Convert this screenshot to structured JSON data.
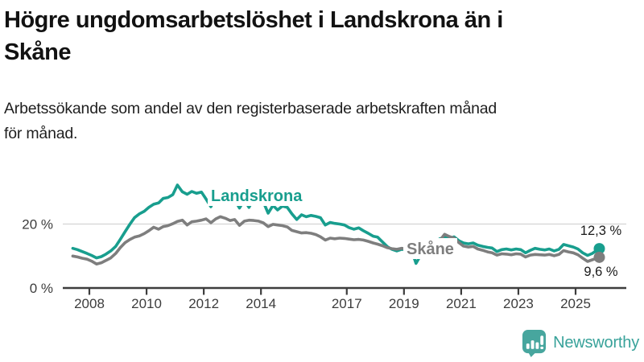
{
  "title_lines": [
    "Högre ungdomsarbetslöshet i Landskrona än i",
    "Skåne"
  ],
  "subtitle_lines": [
    "Arbetssökande som andel av den registerbaserade arbetskraften månad",
    "för månad."
  ],
  "footer": {
    "brand": "Newsworthy",
    "logo_icon": "bar-chart-speech-bubble",
    "logo_color": "#47a69e"
  },
  "colors": {
    "landskrona": "#189e8e",
    "skane": "#7e7e7e",
    "axis": "#3d3d3d",
    "grid": "#d9d9d9",
    "value_label": "#1a1a1a"
  },
  "chart_data": {
    "type": "line",
    "title": "Högre ungdomsarbetslöshet i Landskrona än i Skåne",
    "subtitle": "Arbetssökande som andel av den registerbaserade arbetskraften månad för månad.",
    "xlabel": "",
    "ylabel": "%",
    "ylim": [
      0,
      34
    ],
    "grid": "single-line-at-20",
    "legend_position": "inline-labels",
    "y_axis": {
      "ticks": [
        {
          "value": 20,
          "label": "20 %"
        },
        {
          "value": 0,
          "label": "0 %"
        }
      ]
    },
    "x_axis": {
      "ticks": [
        {
          "label": "2008",
          "year": 2008
        },
        {
          "label": "2010",
          "year": 2010
        },
        {
          "label": "2012",
          "year": 2012
        },
        {
          "label": "2014",
          "year": 2014
        },
        {
          "label": "2017",
          "year": 2017
        },
        {
          "label": "2019",
          "year": 2019
        },
        {
          "label": "2021",
          "year": 2021
        },
        {
          "label": "2023",
          "year": 2023
        },
        {
          "label": "2025",
          "year": 2025
        }
      ]
    },
    "series": [
      {
        "name": "Landskrona",
        "color": "#189e8e",
        "end_label": "12,3 %",
        "end_value": 12.3,
        "points": [
          [
            2007.42,
            12.4
          ],
          [
            2007.58,
            12.0
          ],
          [
            2007.75,
            11.4
          ],
          [
            2007.92,
            10.8
          ],
          [
            2008.08,
            10.2
          ],
          [
            2008.25,
            9.4
          ],
          [
            2008.42,
            9.8
          ],
          [
            2008.58,
            10.6
          ],
          [
            2008.75,
            11.6
          ],
          [
            2008.92,
            13.0
          ],
          [
            2009.08,
            15.2
          ],
          [
            2009.25,
            17.6
          ],
          [
            2009.42,
            20.0
          ],
          [
            2009.58,
            22.0
          ],
          [
            2009.75,
            23.2
          ],
          [
            2009.92,
            24.0
          ],
          [
            2010.08,
            25.2
          ],
          [
            2010.25,
            26.2
          ],
          [
            2010.42,
            26.6
          ],
          [
            2010.58,
            28.0
          ],
          [
            2010.75,
            28.3
          ],
          [
            2010.92,
            29.2
          ],
          [
            2011.08,
            32.2
          ],
          [
            2011.25,
            30.1
          ],
          [
            2011.42,
            29.3
          ],
          [
            2011.58,
            30.2
          ],
          [
            2011.75,
            29.6
          ],
          [
            2011.92,
            30.0
          ],
          [
            2012.08,
            27.8
          ],
          [
            2012.25,
            25.4
          ],
          [
            2012.42,
            28.6
          ],
          [
            2012.58,
            29.2
          ],
          [
            2012.75,
            28.6
          ],
          [
            2012.92,
            29.0
          ],
          [
            2013.08,
            27.6
          ],
          [
            2013.25,
            25.0
          ],
          [
            2013.42,
            27.6
          ],
          [
            2013.58,
            25.2
          ],
          [
            2013.75,
            28.0
          ],
          [
            2013.92,
            28.4
          ],
          [
            2014.08,
            27.0
          ],
          [
            2014.25,
            23.4
          ],
          [
            2014.42,
            25.8
          ],
          [
            2014.58,
            24.4
          ],
          [
            2014.75,
            25.6
          ],
          [
            2014.92,
            25.2
          ],
          [
            2015.08,
            23.2
          ],
          [
            2015.25,
            21.4
          ],
          [
            2015.42,
            22.9
          ],
          [
            2015.58,
            22.3
          ],
          [
            2015.75,
            22.7
          ],
          [
            2015.92,
            22.4
          ],
          [
            2016.08,
            22.0
          ],
          [
            2016.25,
            19.7
          ],
          [
            2016.42,
            20.5
          ],
          [
            2016.58,
            20.2
          ],
          [
            2016.75,
            20.0
          ],
          [
            2016.92,
            19.7
          ],
          [
            2017.08,
            18.9
          ],
          [
            2017.25,
            18.4
          ],
          [
            2017.42,
            18.8
          ],
          [
            2017.58,
            17.9
          ],
          [
            2017.75,
            17.1
          ],
          [
            2017.92,
            16.2
          ],
          [
            2018.08,
            15.9
          ],
          [
            2018.25,
            14.4
          ],
          [
            2018.42,
            12.9
          ],
          [
            2018.58,
            12.1
          ],
          [
            2018.75,
            11.6
          ],
          [
            2018.92,
            12.1
          ],
          [
            2019.08,
            11.9
          ],
          [
            2019.25,
            12.2
          ],
          [
            2019.42,
            7.7
          ],
          [
            2019.58,
            10.2
          ],
          [
            2019.75,
            11.2
          ],
          [
            2019.92,
            12.2
          ],
          [
            2020.08,
            13.4
          ],
          [
            2020.25,
            15.4
          ],
          [
            2020.42,
            15.9
          ],
          [
            2020.58,
            15.4
          ],
          [
            2020.75,
            16.0
          ],
          [
            2020.92,
            14.8
          ],
          [
            2021.08,
            14.1
          ],
          [
            2021.25,
            13.8
          ],
          [
            2021.42,
            14.1
          ],
          [
            2021.58,
            13.4
          ],
          [
            2021.75,
            13.0
          ],
          [
            2021.92,
            12.7
          ],
          [
            2022.08,
            12.5
          ],
          [
            2022.25,
            11.4
          ],
          [
            2022.42,
            12.0
          ],
          [
            2022.58,
            12.2
          ],
          [
            2022.75,
            11.9
          ],
          [
            2022.92,
            12.2
          ],
          [
            2023.08,
            12.0
          ],
          [
            2023.25,
            11.0
          ],
          [
            2023.42,
            11.8
          ],
          [
            2023.58,
            12.4
          ],
          [
            2023.75,
            12.1
          ],
          [
            2023.92,
            11.9
          ],
          [
            2024.08,
            12.2
          ],
          [
            2024.25,
            11.6
          ],
          [
            2024.42,
            12.1
          ],
          [
            2024.58,
            13.6
          ],
          [
            2024.75,
            13.2
          ],
          [
            2024.92,
            12.8
          ],
          [
            2025.08,
            12.2
          ],
          [
            2025.25,
            11.0
          ],
          [
            2025.42,
            10.2
          ],
          [
            2025.58,
            10.8
          ],
          [
            2025.83,
            12.3
          ]
        ]
      },
      {
        "name": "Skåne",
        "color": "#7e7e7e",
        "end_label": "9,6 %",
        "end_value": 9.6,
        "points": [
          [
            2007.42,
            10.0
          ],
          [
            2007.58,
            9.7
          ],
          [
            2007.75,
            9.3
          ],
          [
            2007.92,
            9.0
          ],
          [
            2008.08,
            8.4
          ],
          [
            2008.25,
            7.5
          ],
          [
            2008.42,
            7.9
          ],
          [
            2008.58,
            8.6
          ],
          [
            2008.75,
            9.4
          ],
          [
            2008.92,
            10.8
          ],
          [
            2009.08,
            12.6
          ],
          [
            2009.25,
            14.2
          ],
          [
            2009.42,
            15.2
          ],
          [
            2009.58,
            15.9
          ],
          [
            2009.75,
            16.3
          ],
          [
            2009.92,
            17.0
          ],
          [
            2010.08,
            17.9
          ],
          [
            2010.25,
            19.0
          ],
          [
            2010.42,
            18.4
          ],
          [
            2010.58,
            19.2
          ],
          [
            2010.75,
            19.5
          ],
          [
            2010.92,
            20.1
          ],
          [
            2011.08,
            20.8
          ],
          [
            2011.25,
            21.2
          ],
          [
            2011.42,
            19.7
          ],
          [
            2011.58,
            20.7
          ],
          [
            2011.75,
            20.9
          ],
          [
            2011.92,
            21.2
          ],
          [
            2012.08,
            21.6
          ],
          [
            2012.25,
            20.4
          ],
          [
            2012.42,
            21.6
          ],
          [
            2012.58,
            22.3
          ],
          [
            2012.75,
            21.8
          ],
          [
            2012.92,
            21.1
          ],
          [
            2013.08,
            21.4
          ],
          [
            2013.25,
            19.6
          ],
          [
            2013.42,
            20.9
          ],
          [
            2013.58,
            21.2
          ],
          [
            2013.75,
            21.1
          ],
          [
            2013.92,
            20.9
          ],
          [
            2014.08,
            20.4
          ],
          [
            2014.25,
            19.2
          ],
          [
            2014.42,
            19.9
          ],
          [
            2014.58,
            19.7
          ],
          [
            2014.75,
            19.5
          ],
          [
            2014.92,
            19.1
          ],
          [
            2015.08,
            18.0
          ],
          [
            2015.25,
            17.6
          ],
          [
            2015.42,
            17.2
          ],
          [
            2015.58,
            17.3
          ],
          [
            2015.75,
            17.1
          ],
          [
            2015.92,
            16.7
          ],
          [
            2016.08,
            16.0
          ],
          [
            2016.25,
            15.0
          ],
          [
            2016.42,
            15.6
          ],
          [
            2016.58,
            15.4
          ],
          [
            2016.75,
            15.6
          ],
          [
            2016.92,
            15.5
          ],
          [
            2017.08,
            15.3
          ],
          [
            2017.25,
            15.1
          ],
          [
            2017.42,
            15.2
          ],
          [
            2017.58,
            15.0
          ],
          [
            2017.75,
            14.6
          ],
          [
            2017.92,
            14.1
          ],
          [
            2018.08,
            13.7
          ],
          [
            2018.25,
            13.2
          ],
          [
            2018.42,
            12.6
          ],
          [
            2018.58,
            12.3
          ],
          [
            2018.75,
            12.1
          ],
          [
            2018.92,
            12.4
          ],
          [
            2019.08,
            12.2
          ],
          [
            2019.25,
            12.0
          ],
          [
            2019.42,
            11.5
          ],
          [
            2019.58,
            11.2
          ],
          [
            2019.75,
            11.6
          ],
          [
            2019.92,
            12.1
          ],
          [
            2020.08,
            13.0
          ],
          [
            2020.25,
            14.8
          ],
          [
            2020.42,
            16.8
          ],
          [
            2020.58,
            16.1
          ],
          [
            2020.75,
            15.6
          ],
          [
            2020.92,
            14.2
          ],
          [
            2021.08,
            13.1
          ],
          [
            2021.25,
            12.8
          ],
          [
            2021.42,
            13.0
          ],
          [
            2021.58,
            12.2
          ],
          [
            2021.75,
            11.8
          ],
          [
            2021.92,
            11.3
          ],
          [
            2022.08,
            11.0
          ],
          [
            2022.25,
            10.3
          ],
          [
            2022.42,
            10.7
          ],
          [
            2022.58,
            10.6
          ],
          [
            2022.75,
            10.4
          ],
          [
            2022.92,
            10.7
          ],
          [
            2023.08,
            10.6
          ],
          [
            2023.25,
            9.7
          ],
          [
            2023.42,
            10.3
          ],
          [
            2023.58,
            10.5
          ],
          [
            2023.75,
            10.4
          ],
          [
            2023.92,
            10.3
          ],
          [
            2024.08,
            10.5
          ],
          [
            2024.25,
            10.1
          ],
          [
            2024.42,
            10.5
          ],
          [
            2024.58,
            11.7
          ],
          [
            2024.75,
            11.3
          ],
          [
            2024.92,
            11.0
          ],
          [
            2025.08,
            10.4
          ],
          [
            2025.25,
            9.3
          ],
          [
            2025.42,
            8.3
          ],
          [
            2025.58,
            8.8
          ],
          [
            2025.83,
            9.6
          ]
        ]
      }
    ]
  }
}
